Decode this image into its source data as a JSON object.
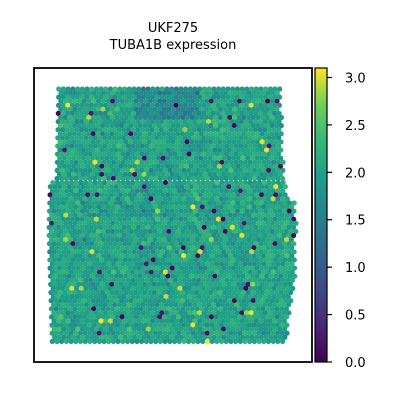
{
  "chart_data": {
    "type": "scatter",
    "title": "UKF275",
    "subtitle": "TUBA1B expression",
    "gene": "TUBA1B",
    "sample": "UKF275",
    "colormap": "viridis",
    "colorbar": {
      "range": [
        0.0,
        3.1
      ],
      "ticks": [
        0.0,
        0.5,
        1.0,
        1.5,
        2.0,
        2.5,
        3.0
      ],
      "tick_labels": [
        "0.0",
        "0.5",
        "1.0",
        "1.5",
        "2.0",
        "2.5",
        "3.0"
      ]
    },
    "value_distribution": {
      "typical_range": [
        1.4,
        2.6
      ],
      "mode": 2.0,
      "min": 0.0,
      "max": 3.1,
      "low_value_fraction": 0.02
    },
    "axes_visible": false,
    "grid": false
  }
}
